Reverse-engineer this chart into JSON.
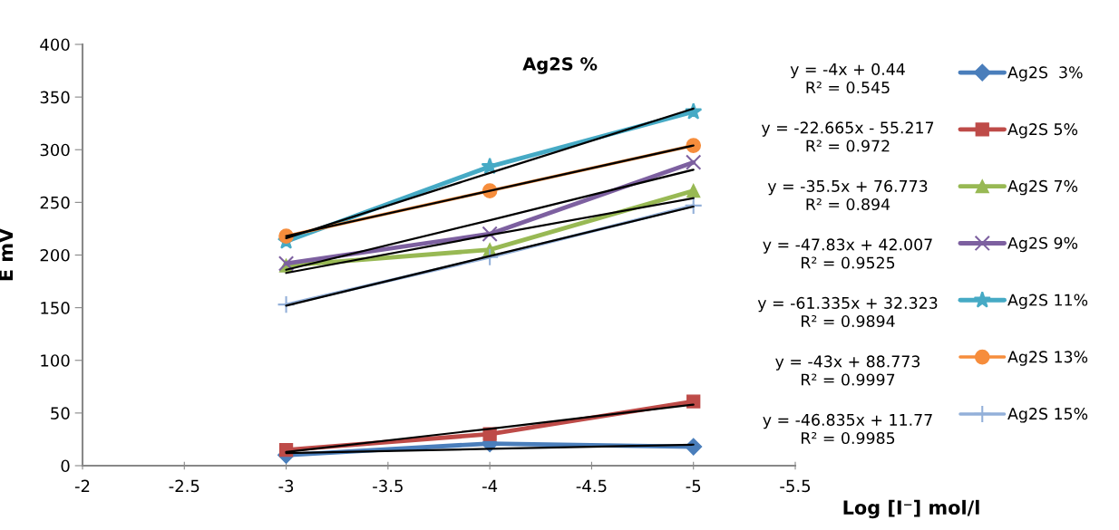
{
  "chart_data": {
    "type": "line",
    "title": "Ag2S %",
    "xlabel": "Log [I⁻] mol/l",
    "ylabel": "E mV",
    "xlim": [
      -2,
      -5.5
    ],
    "xticks": [
      -2,
      -2.5,
      -3,
      -3.5,
      -4,
      -4.5,
      -5,
      -5.5
    ],
    "ylim": [
      0,
      400
    ],
    "yticks": [
      0,
      50,
      100,
      150,
      200,
      250,
      300,
      350,
      400
    ],
    "grid": false,
    "legend": "right",
    "x": [
      -3,
      -4,
      -5
    ],
    "series": [
      {
        "name": "Ag2S  3%",
        "color": "#4a7ebb",
        "marker": "diamond",
        "values": [
          10,
          21,
          18
        ]
      },
      {
        "name": "Ag2S 5%",
        "color": "#be4b48",
        "marker": "square",
        "values": [
          15,
          30,
          61
        ]
      },
      {
        "name": "Ag2S 7%",
        "color": "#98b954",
        "marker": "triangle",
        "values": [
          190,
          205,
          261
        ]
      },
      {
        "name": "Ag2S 9%",
        "color": "#7d60a0",
        "marker": "cross",
        "values": [
          192,
          220,
          288
        ]
      },
      {
        "name": "Ag2S 11%",
        "color": "#46aac5",
        "marker": "star",
        "values": [
          213,
          284,
          336
        ]
      },
      {
        "name": "Ag2S 13%",
        "color": "#f68d3c",
        "marker": "circle",
        "values": [
          218,
          261,
          304
        ]
      },
      {
        "name": "Ag2S 15%",
        "color": "#93b0d9",
        "marker": "plus",
        "values": [
          153,
          198,
          247
        ]
      },
      {
        "type": "line",
        "color": "#000000",
        "marker": "none",
        "values": [
          12,
          16,
          20
        ]
      },
      {
        "type": "line",
        "color": "#000000",
        "marker": "none",
        "values": [
          13,
          35,
          58
        ]
      },
      {
        "type": "line",
        "color": "#000000",
        "marker": "none",
        "values": [
          183,
          219,
          254
        ]
      },
      {
        "type": "line",
        "color": "#000000",
        "marker": "none",
        "values": [
          186,
          233,
          281
        ]
      },
      {
        "type": "line",
        "color": "#000000",
        "marker": "none",
        "values": [
          216,
          278,
          339
        ]
      },
      {
        "type": "line",
        "color": "#000000",
        "marker": "none",
        "values": [
          218,
          261,
          304
        ]
      },
      {
        "type": "line",
        "color": "#000000",
        "marker": "none",
        "values": [
          152,
          199,
          246
        ]
      }
    ],
    "annotations": [
      "y = -4x + 0.44\nR² = 0.545",
      "y = -22.665x - 55.217\nR² = 0.972",
      "y = -35.5x + 76.773\nR² = 0.894",
      "y = -47.83x + 42.007\nR² = 0.9525",
      "y = -61.335x + 32.323\nR² = 0.9894",
      "y = -43x + 88.773\nR² = 0.9997",
      "y = -46.835x + 11.77\nR² = 0.9985"
    ]
  }
}
